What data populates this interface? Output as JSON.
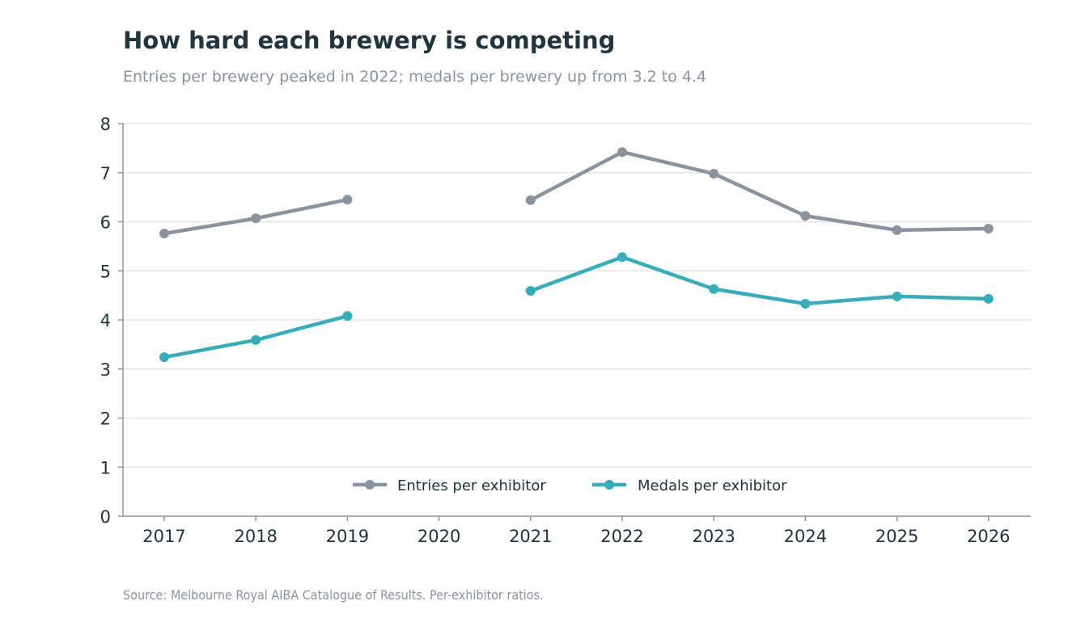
{
  "title": "How hard each brewery is competing",
  "subtitle": "Entries per brewery peaked in 2022; medals per brewery up from 3.2 to 4.4",
  "source": "Source: Melbourne Royal AIBA Catalogue of Results. Per-exhibitor ratios.",
  "chart_data": {
    "type": "line",
    "title": "How hard each brewery is competing",
    "subtitle": "Entries per brewery peaked in 2022; medals per brewery up from 3.2 to 4.4",
    "xlabel": "",
    "ylabel": "",
    "categories": [
      "2017",
      "2018",
      "2019",
      "2020",
      "2021",
      "2022",
      "2023",
      "2024",
      "2025",
      "2026"
    ],
    "yticks": [
      0,
      1,
      2,
      3,
      4,
      5,
      6,
      7,
      8
    ],
    "ylim": [
      0,
      8
    ],
    "grid": "horizontal",
    "legend_position": "bottom-center",
    "series": [
      {
        "name": "Entries per exhibitor",
        "color": "#8a939f",
        "values": [
          5.76,
          6.07,
          6.45,
          null,
          6.44,
          7.42,
          6.98,
          6.12,
          5.83,
          5.86
        ]
      },
      {
        "name": "Medals per exhibitor",
        "color": "#36adba",
        "values": [
          3.24,
          3.59,
          4.08,
          null,
          4.59,
          5.28,
          4.63,
          4.33,
          4.48,
          4.43
        ]
      }
    ]
  }
}
